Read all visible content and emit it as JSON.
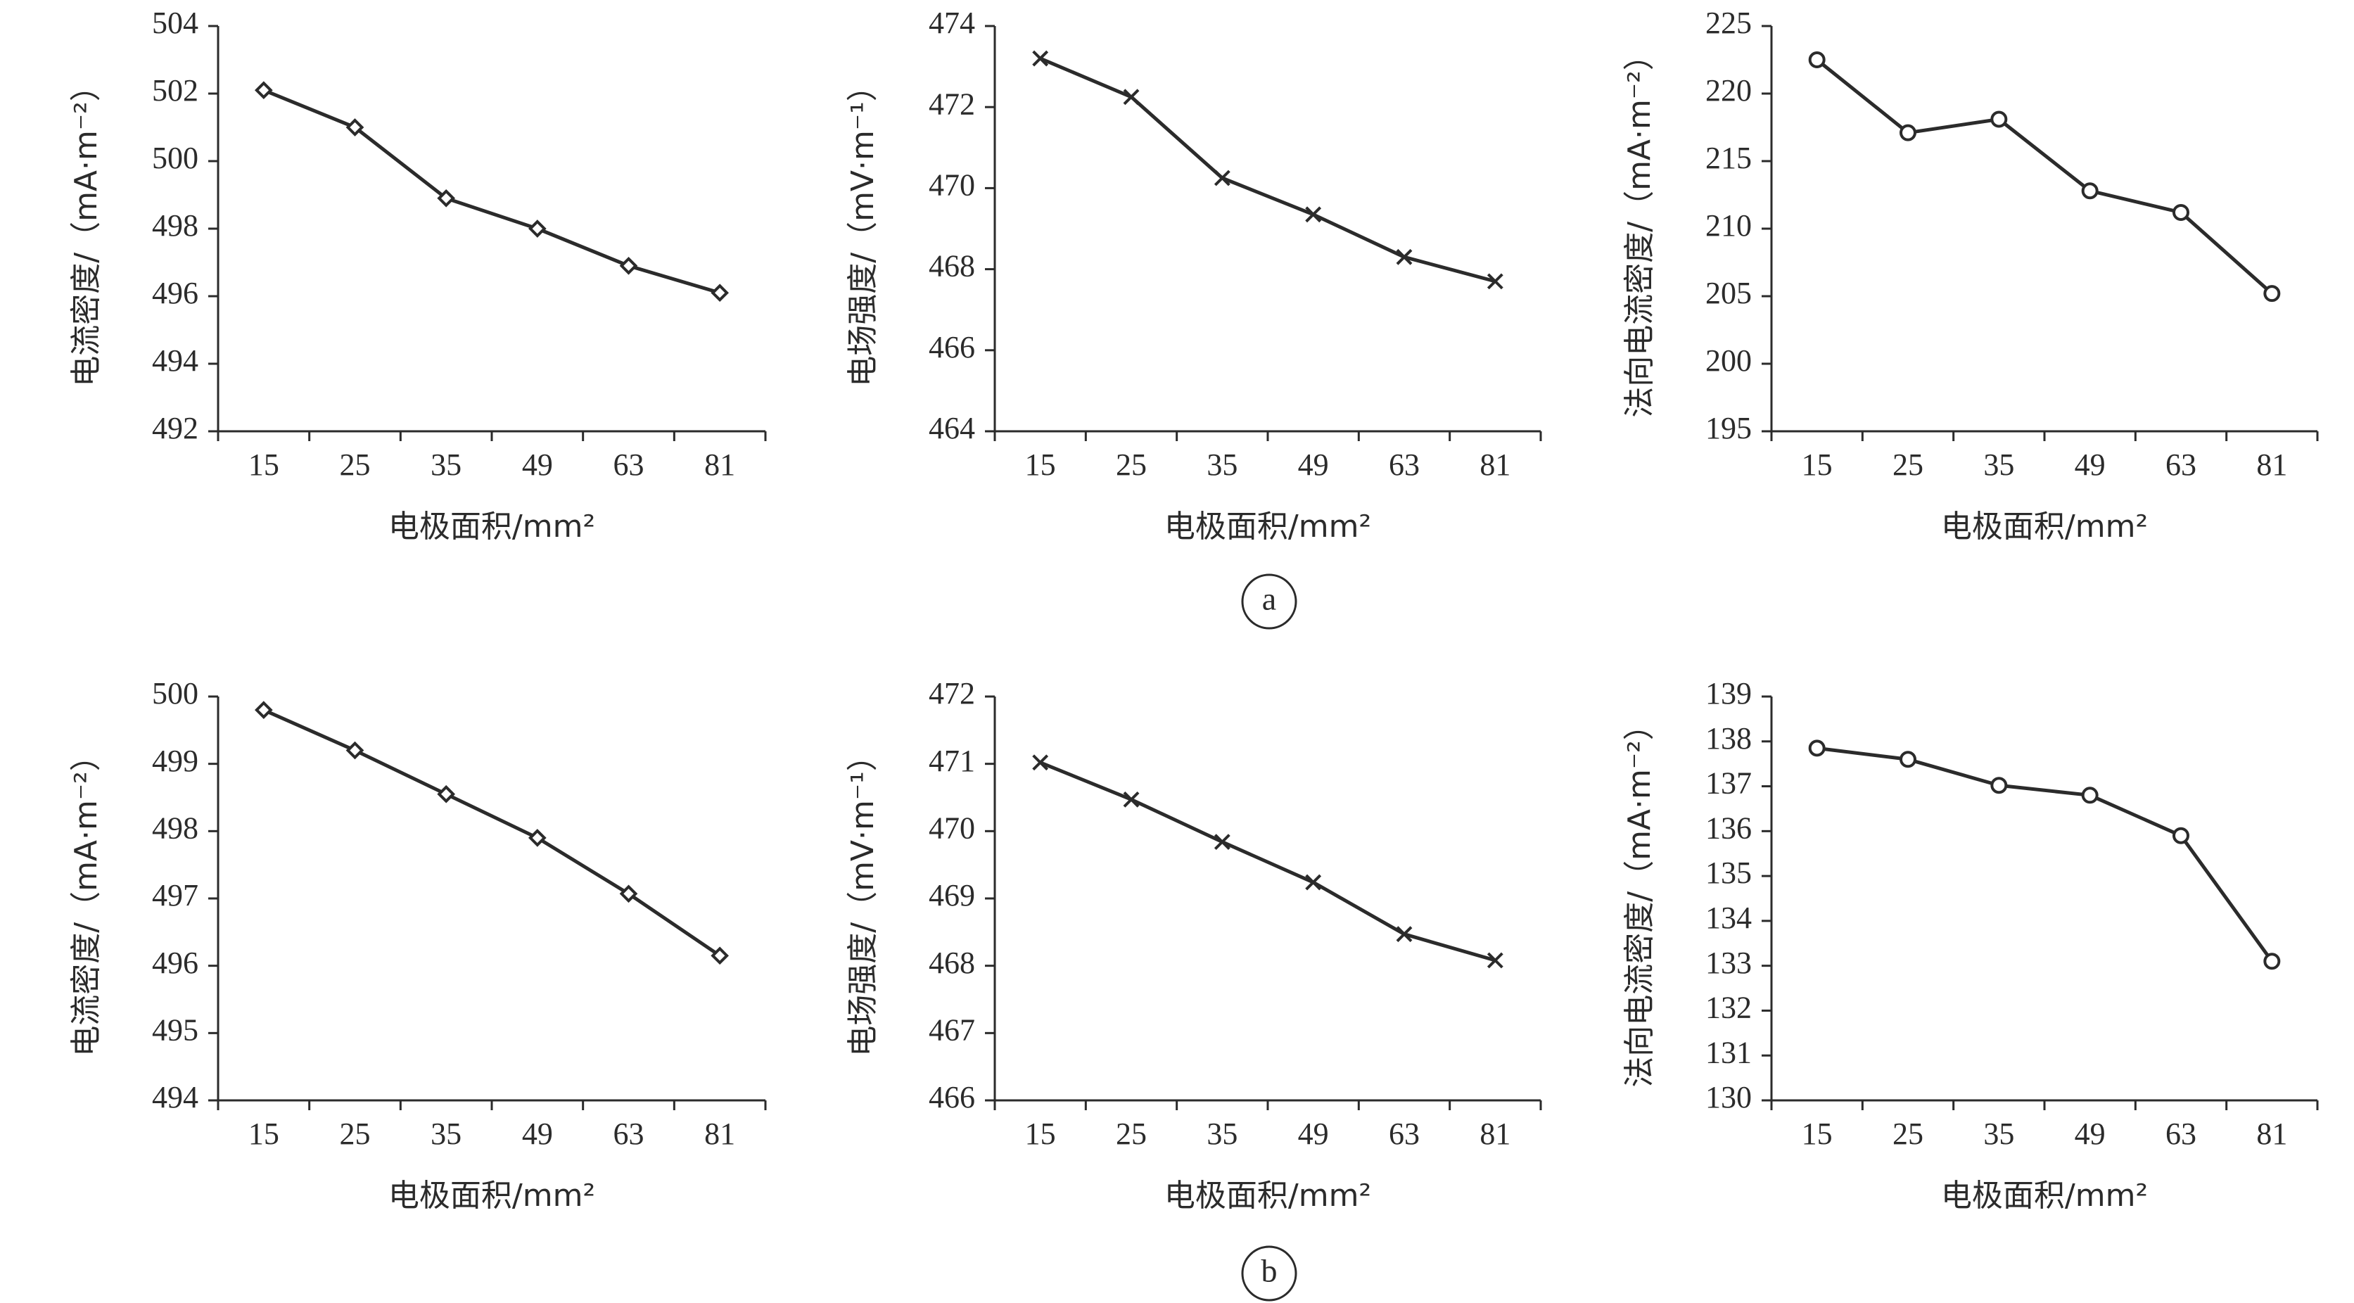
{
  "colors": {
    "axis": "#2b2b2b",
    "series": "#2b2b2b",
    "background": "#ffffff"
  },
  "panel_labels": [
    "a",
    "b"
  ],
  "chart_data": [
    {
      "type": "line",
      "panel": "a",
      "categories": [
        "15",
        "25",
        "35",
        "49",
        "63",
        "81"
      ],
      "series": [
        {
          "values": [
            502.1,
            501.0,
            498.9,
            498.0,
            496.9,
            496.1
          ]
        }
      ],
      "marker": "diamond",
      "xlabel": "电极面积/mm²",
      "ylabel": "电流密度/（mA·m⁻²）",
      "ylim": [
        492,
        504
      ],
      "yticks": [
        "492",
        "494",
        "496",
        "498",
        "500",
        "502",
        "504"
      ],
      "grid": false
    },
    {
      "type": "line",
      "panel": "a",
      "categories": [
        "15",
        "25",
        "35",
        "49",
        "63",
        "81"
      ],
      "series": [
        {
          "values": [
            473.2,
            472.25,
            470.25,
            469.35,
            468.3,
            467.7
          ]
        }
      ],
      "marker": "x",
      "xlabel": "电极面积/mm²",
      "ylabel": "电场强度/（mV·m⁻¹）",
      "ylim": [
        464,
        474
      ],
      "yticks": [
        "464",
        "466",
        "468",
        "470",
        "472",
        "474"
      ],
      "grid": false
    },
    {
      "type": "line",
      "panel": "a",
      "categories": [
        "15",
        "25",
        "35",
        "49",
        "63",
        "81"
      ],
      "series": [
        {
          "values": [
            222.5,
            217.1,
            218.1,
            212.8,
            211.2,
            205.2
          ]
        }
      ],
      "marker": "circle",
      "xlabel": "电极面积/mm²",
      "ylabel": "法向电流密度/（mA·m⁻²）",
      "ylim": [
        195,
        225
      ],
      "yticks": [
        "195",
        "200",
        "205",
        "210",
        "215",
        "220",
        "225"
      ],
      "grid": false
    },
    {
      "type": "line",
      "panel": "b",
      "categories": [
        "15",
        "25",
        "35",
        "49",
        "63",
        "81"
      ],
      "series": [
        {
          "values": [
            499.8,
            499.2,
            498.55,
            497.9,
            497.07,
            496.15
          ]
        }
      ],
      "marker": "diamond",
      "xlabel": "电极面积/mm²",
      "ylabel": "电流密度/（mA·m⁻²）",
      "ylim": [
        494,
        500
      ],
      "yticks": [
        "494",
        "495",
        "496",
        "497",
        "498",
        "499",
        "500"
      ],
      "grid": false
    },
    {
      "type": "line",
      "panel": "b",
      "categories": [
        "15",
        "25",
        "35",
        "49",
        "63",
        "81"
      ],
      "series": [
        {
          "values": [
            471.02,
            470.47,
            469.84,
            469.24,
            468.47,
            468.08
          ]
        }
      ],
      "marker": "x",
      "xlabel": "电极面积/mm²",
      "ylabel": "电场强度/（mV·m⁻¹）",
      "ylim": [
        466,
        472
      ],
      "yticks": [
        "466",
        "467",
        "468",
        "469",
        "470",
        "471",
        "472"
      ],
      "grid": false
    },
    {
      "type": "line",
      "panel": "b",
      "categories": [
        "15",
        "25",
        "35",
        "49",
        "63",
        "81"
      ],
      "series": [
        {
          "values": [
            137.85,
            137.6,
            137.02,
            136.8,
            135.9,
            133.1
          ]
        }
      ],
      "marker": "circle",
      "xlabel": "电极面积/mm²",
      "ylabel": "法向电流密度/（mA·m⁻²）",
      "ylim": [
        130,
        139
      ],
      "yticks": [
        "130",
        "131",
        "132",
        "133",
        "134",
        "135",
        "136",
        "137",
        "138",
        "139"
      ],
      "grid": false
    }
  ]
}
